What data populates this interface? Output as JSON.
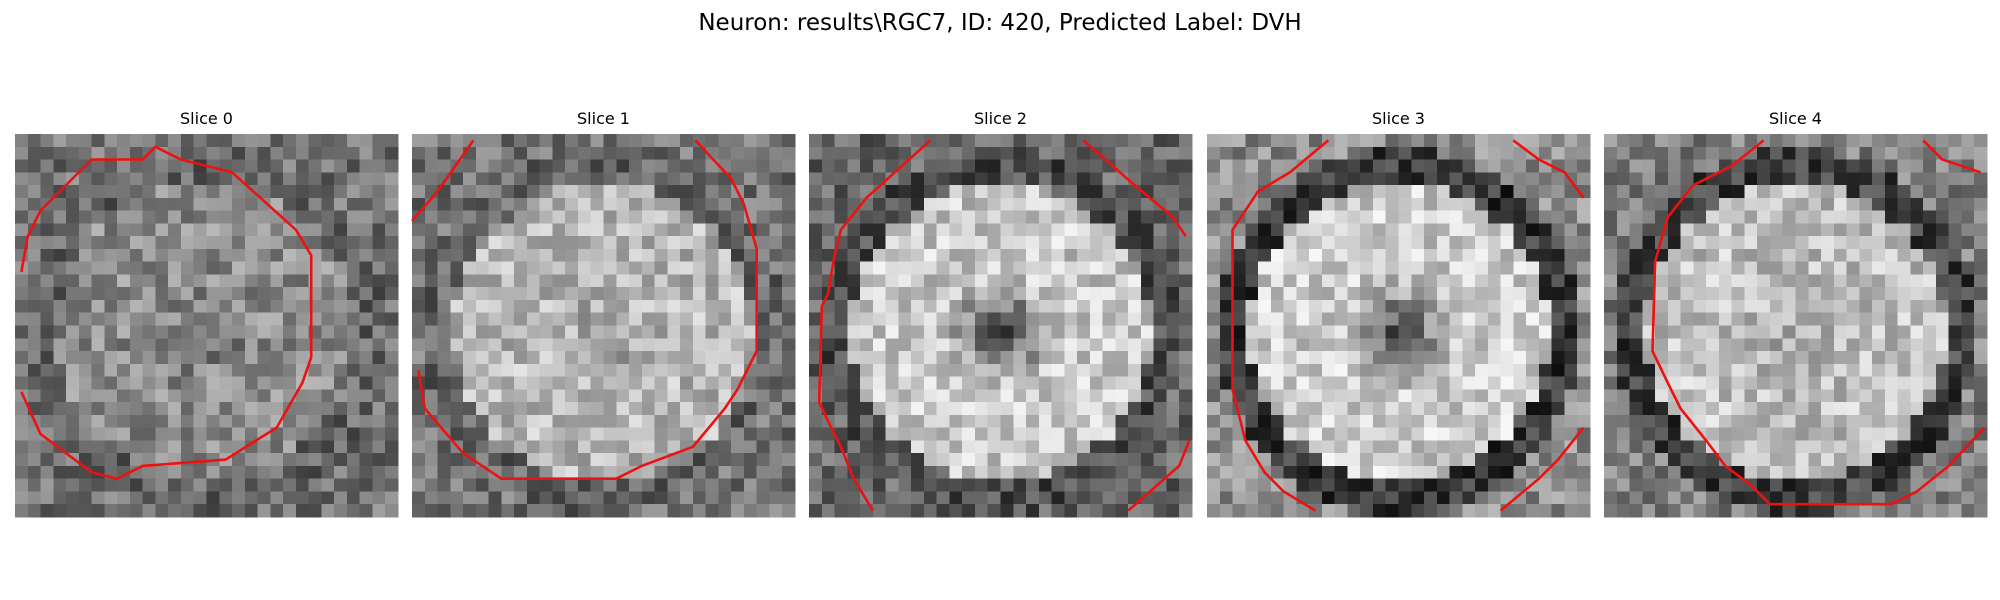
{
  "figure": {
    "title": "Neuron: results\\RGC7, ID: 420, Predicted Label: DVH",
    "panels": [
      {
        "title": "Slice 0"
      },
      {
        "title": "Slice 1"
      },
      {
        "title": "Slice 2"
      },
      {
        "title": "Slice 3"
      },
      {
        "title": "Slice 4"
      }
    ]
  }
}
